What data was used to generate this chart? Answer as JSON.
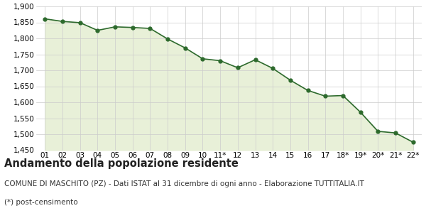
{
  "x_labels": [
    "01",
    "02",
    "03",
    "04",
    "05",
    "06",
    "07",
    "08",
    "09",
    "10",
    "11*",
    "12",
    "13",
    "14",
    "15",
    "16",
    "17",
    "18*",
    "19*",
    "20*",
    "21*",
    "22*"
  ],
  "y_values": [
    1861,
    1853,
    1849,
    1825,
    1836,
    1834,
    1831,
    1798,
    1770,
    1736,
    1730,
    1708,
    1733,
    1706,
    1669,
    1637,
    1619,
    1621,
    1569,
    1509,
    1504,
    1475
  ],
  "ylim_min": 1450,
  "ylim_max": 1900,
  "yticks": [
    1450,
    1500,
    1550,
    1600,
    1650,
    1700,
    1750,
    1800,
    1850,
    1900
  ],
  "line_color": "#2d6a2d",
  "fill_color": "#e8f0d8",
  "marker_color": "#2d6a2d",
  "bg_color": "#ffffff",
  "grid_color": "#cccccc",
  "title": "Andamento della popolazione residente",
  "subtitle": "COMUNE DI MASCHITO (PZ) - Dati ISTAT al 31 dicembre di ogni anno - Elaborazione TUTTITALIA.IT",
  "footnote": "(*) post-censimento",
  "title_fontsize": 10.5,
  "subtitle_fontsize": 7.5,
  "footnote_fontsize": 7.5,
  "tick_fontsize": 7.5
}
